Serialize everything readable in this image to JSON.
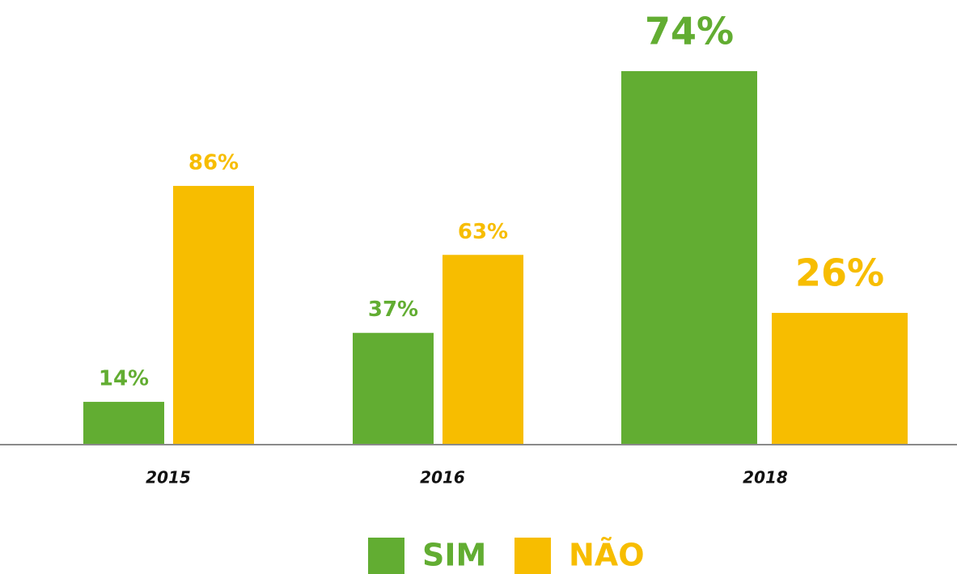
{
  "chart_data": {
    "type": "bar",
    "categories": [
      "2015",
      "2016",
      "2018"
    ],
    "series": [
      {
        "name": "SIM",
        "color": "#62ad32",
        "values": [
          14,
          37,
          74
        ],
        "value_labels": [
          "14%",
          "37%",
          "74%"
        ]
      },
      {
        "name": "NÃO",
        "color": "#f7bd00",
        "values": [
          86,
          63,
          26
        ],
        "value_labels": [
          "86%",
          "63%",
          "26%"
        ]
      }
    ]
  }
}
